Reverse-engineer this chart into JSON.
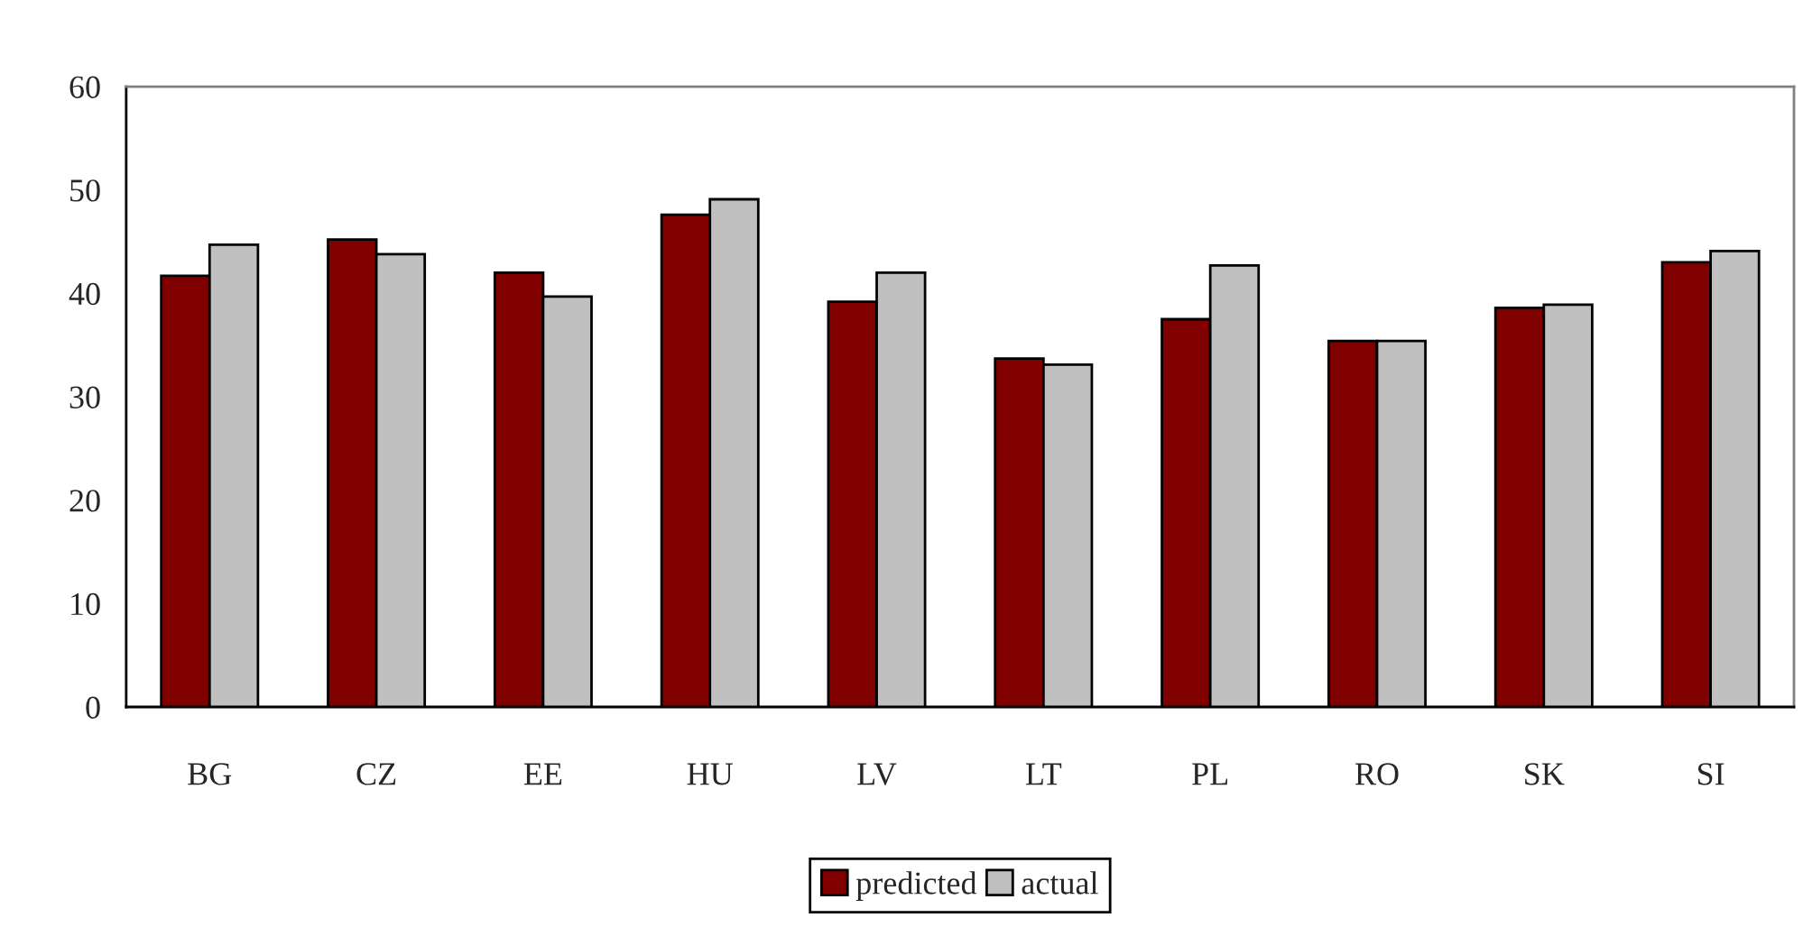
{
  "chart_data": {
    "type": "bar",
    "categories": [
      "BG",
      "CZ",
      "EE",
      "HU",
      "LV",
      "LT",
      "PL",
      "RO",
      "SK",
      "SI"
    ],
    "series": [
      {
        "name": "predicted",
        "color": "#800000",
        "values": [
          41.7,
          45.2,
          42.0,
          47.6,
          39.2,
          33.7,
          37.5,
          35.4,
          38.6,
          43.0
        ]
      },
      {
        "name": "actual",
        "color": "#c0c0c0",
        "values": [
          44.7,
          43.8,
          39.7,
          49.1,
          42.0,
          33.1,
          42.7,
          35.4,
          38.9,
          44.1
        ]
      }
    ],
    "ylim": [
      0,
      60
    ],
    "yticks": [
      0,
      10,
      20,
      30,
      40,
      50,
      60
    ],
    "legend": "bottom"
  }
}
